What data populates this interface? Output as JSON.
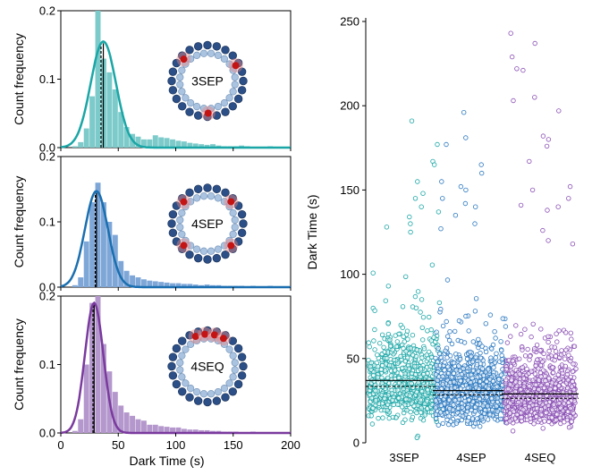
{
  "chart_data": [
    {
      "type": "bar",
      "name": "3SEP",
      "ring_label": "3SEP",
      "ylabel": "Count frequency",
      "xlim": [
        0,
        200
      ],
      "ylim": [
        0,
        0.2
      ],
      "yticks": [
        "0.0",
        "0.1",
        "0.2"
      ],
      "color": "#1aa6a6",
      "bar_color": "#7ccaca",
      "marker_count": 3,
      "mean": 37,
      "median": 35,
      "fit": {
        "peak": 0.155,
        "mode": 37,
        "sigma": 11
      },
      "bins_x": [
        10,
        15,
        20,
        25,
        30,
        35,
        40,
        45,
        50,
        55,
        60,
        65,
        70,
        75,
        80,
        85,
        90,
        95,
        100,
        105,
        110,
        115,
        120,
        125,
        130,
        135,
        140,
        145,
        150,
        155,
        160,
        165,
        170,
        175,
        180,
        185,
        190
      ],
      "values": [
        0.002,
        0.008,
        0.028,
        0.075,
        0.2,
        0.13,
        0.11,
        0.085,
        0.052,
        0.03,
        0.02,
        0.016,
        0.012,
        0.012,
        0.018,
        0.015,
        0.014,
        0.012,
        0.01,
        0.009,
        0.007,
        0.006,
        0.005,
        0.004,
        0.005,
        0.003,
        0.002,
        0.002,
        0.002,
        0.003,
        0.002,
        0.001,
        0.001,
        0.001,
        0.002,
        0.001,
        0.001
      ]
    },
    {
      "type": "bar",
      "name": "4SEP",
      "ring_label": "4SEP",
      "ylabel": "Count frequency",
      "xlim": [
        0,
        200
      ],
      "ylim": [
        0,
        0.2
      ],
      "yticks": [
        "0.0",
        "0.1",
        "0.2"
      ],
      "color": "#1a6fb0",
      "bar_color": "#7ea7d8",
      "marker_count": 4,
      "mean": 31,
      "median": 30,
      "fit": {
        "peak": 0.147,
        "mode": 31,
        "sigma": 10
      },
      "bins_x": [
        10,
        15,
        20,
        25,
        30,
        35,
        40,
        45,
        50,
        55,
        60,
        65,
        70,
        75,
        80,
        85,
        90,
        95,
        100,
        105,
        110,
        115,
        120,
        125,
        130,
        135,
        140,
        145,
        150,
        155,
        160,
        165,
        170,
        175,
        180,
        185,
        190
      ],
      "values": [
        0.003,
        0.015,
        0.07,
        0.13,
        0.16,
        0.13,
        0.1,
        0.08,
        0.04,
        0.025,
        0.018,
        0.015,
        0.012,
        0.01,
        0.009,
        0.008,
        0.007,
        0.006,
        0.006,
        0.005,
        0.005,
        0.004,
        0.003,
        0.004,
        0.003,
        0.003,
        0.002,
        0.002,
        0.002,
        0.002,
        0.001,
        0.002,
        0.001,
        0.001,
        0.002,
        0.001,
        0.001
      ]
    },
    {
      "type": "bar",
      "name": "4SEQ",
      "ring_label": "4SEQ",
      "ylabel": "Count frequency",
      "xlabel": "Dark Time (s)",
      "xlim": [
        0,
        200
      ],
      "ylim": [
        0,
        0.2
      ],
      "xticks": [
        "0",
        "50",
        "100",
        "150",
        "200"
      ],
      "yticks": [
        "0.0",
        "0.1",
        "0.2"
      ],
      "color": "#7a3a9e",
      "bar_color": "#b497cc",
      "marker_count": 4,
      "mean": 29,
      "median": 28,
      "fit": {
        "peak": 0.19,
        "mode": 29,
        "sigma": 8
      },
      "bins_x": [
        10,
        15,
        20,
        25,
        30,
        35,
        40,
        45,
        50,
        55,
        60,
        65,
        70,
        75,
        80,
        85,
        90,
        95,
        100,
        105,
        110,
        115,
        120,
        125,
        130,
        135,
        140,
        145,
        150,
        155,
        160,
        165,
        170,
        175,
        180,
        185,
        190
      ],
      "values": [
        0.003,
        0.02,
        0.1,
        0.19,
        0.2,
        0.13,
        0.09,
        0.06,
        0.04,
        0.03,
        0.025,
        0.02,
        0.018,
        0.012,
        0.012,
        0.01,
        0.009,
        0.008,
        0.008,
        0.006,
        0.005,
        0.005,
        0.004,
        0.004,
        0.003,
        0.003,
        0.002,
        0.002,
        0.002,
        0.001,
        0.001,
        0.002,
        0.001,
        0.001,
        0.001,
        0.001,
        0.001
      ]
    },
    {
      "type": "scatter",
      "name": "strip",
      "ylabel": "Dark Time (s)",
      "ylim": [
        0,
        250
      ],
      "yticks": [
        "0",
        "50",
        "100",
        "150",
        "200",
        "250"
      ],
      "categories": [
        "3SEP",
        "4SEP",
        "4SEQ"
      ],
      "series": [
        {
          "name": "3SEP",
          "color": "#1aa6a6",
          "dark": "#1e7a7a",
          "mean": 37,
          "median": 35,
          "n": 720,
          "seed": 11,
          "outliers": [
            191,
            177,
            167,
            165,
            155,
            148,
            145,
            140,
            137,
            134,
            130,
            128,
            125,
            4,
            3
          ]
        },
        {
          "name": "4SEP",
          "color": "#2a78c0",
          "dark": "#1e5a8a",
          "mean": 31,
          "median": 30,
          "n": 850,
          "seed": 23,
          "outliers": [
            196,
            181,
            177,
            165,
            160,
            155,
            152,
            150,
            145,
            142,
            140,
            135,
            130,
            127
          ]
        },
        {
          "name": "4SEQ",
          "color": "#8a4fb5",
          "dark": "#5e2f86",
          "mean": 29,
          "median": 28,
          "n": 900,
          "seed": 37,
          "outliers": [
            243,
            237,
            229,
            222,
            221,
            205,
            203,
            197,
            182,
            180,
            176,
            167,
            152,
            150,
            145,
            141,
            140,
            138,
            126,
            120,
            118,
            7
          ]
        }
      ]
    }
  ]
}
